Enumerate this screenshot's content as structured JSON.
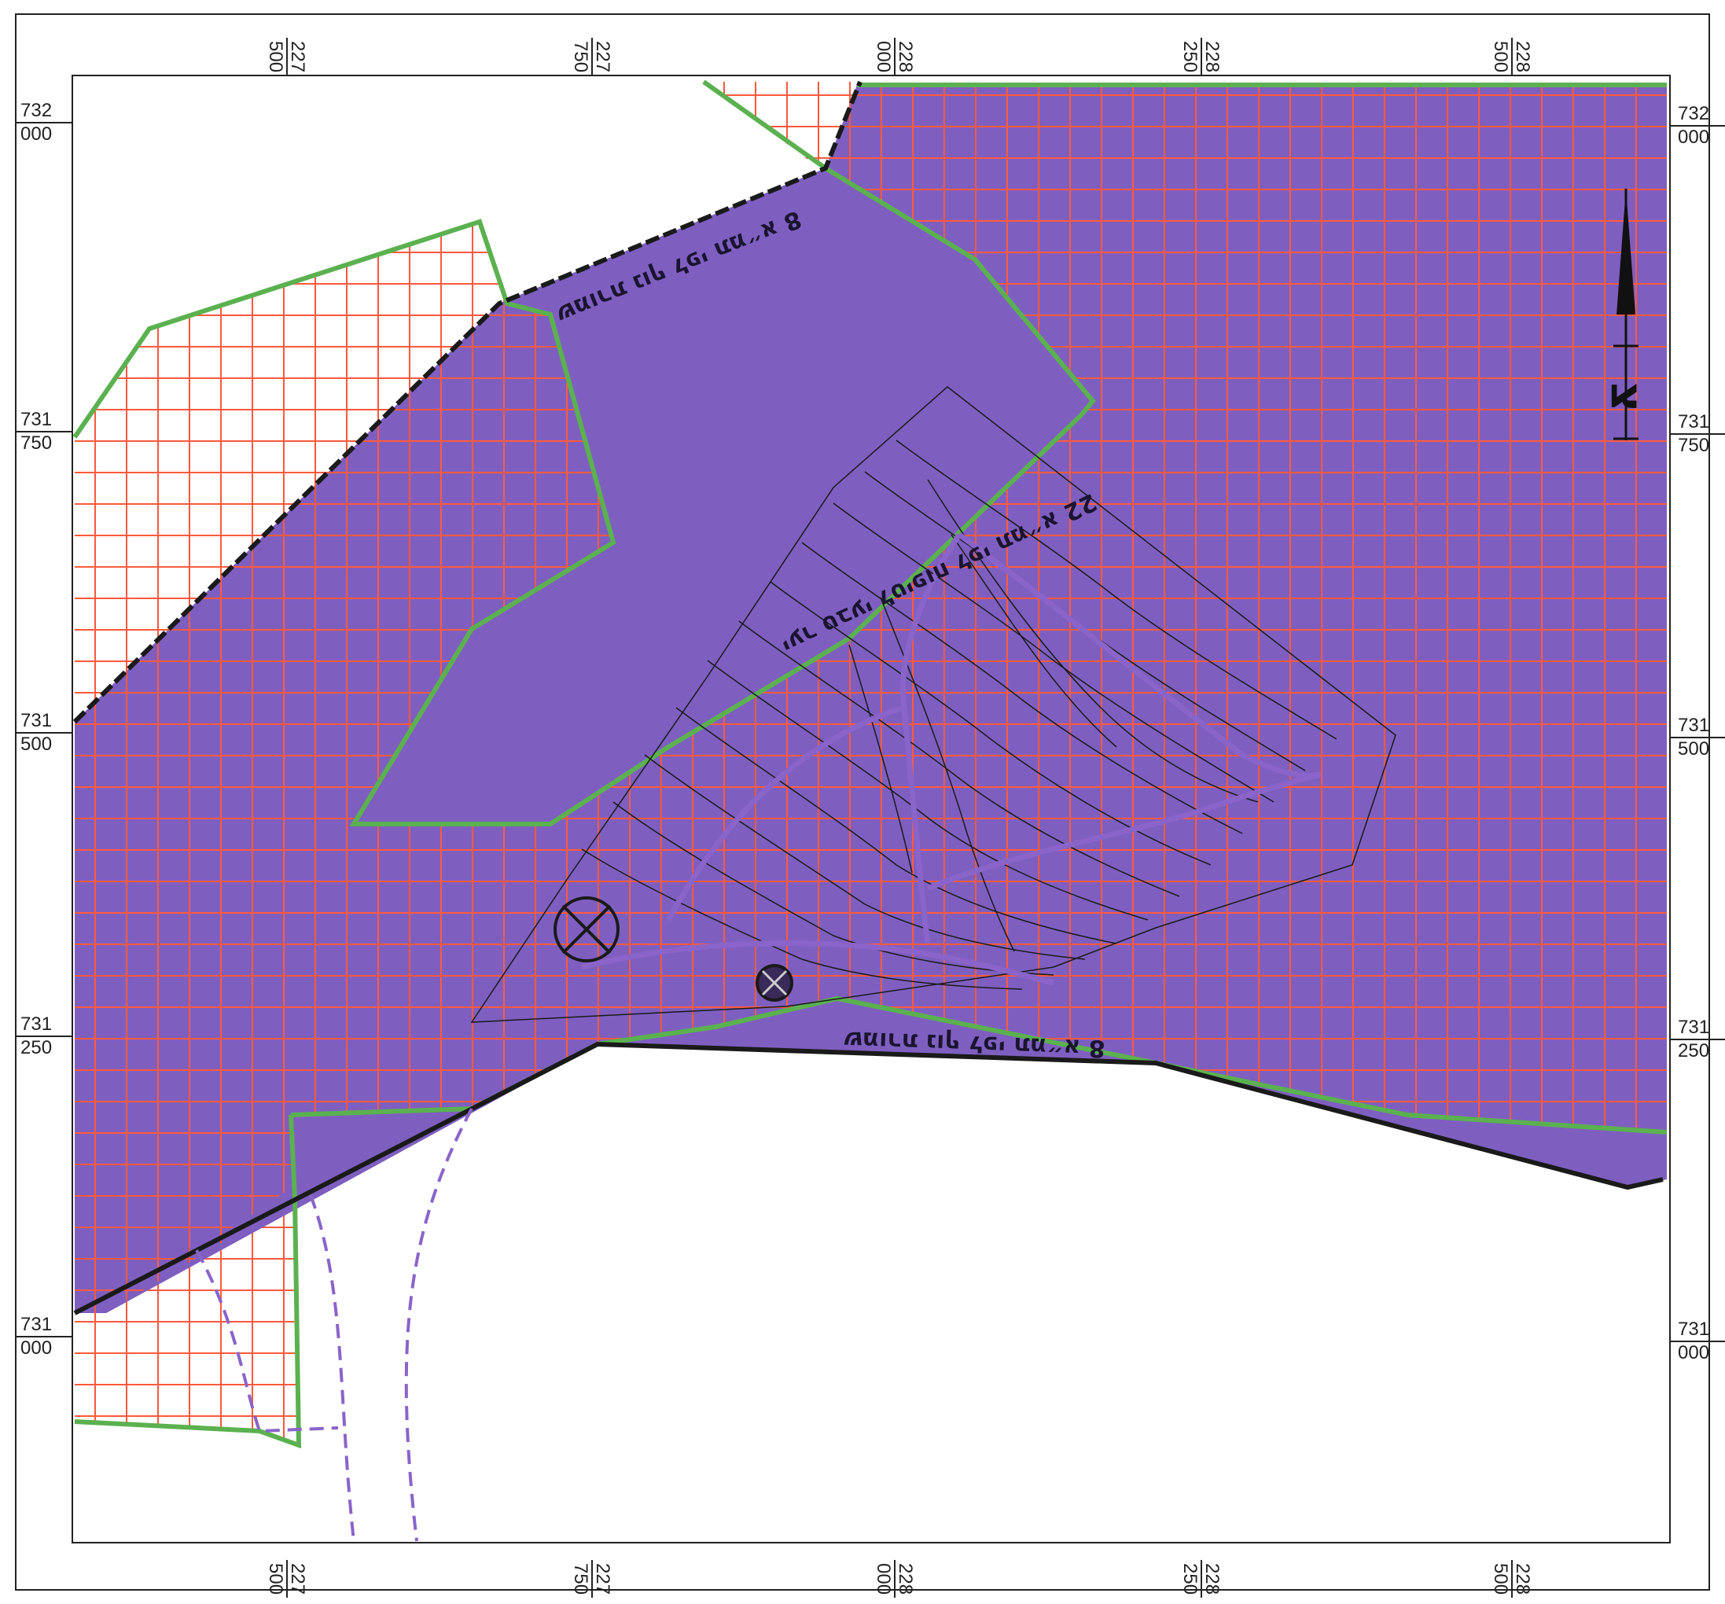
{
  "colors": {
    "preserve_fill": "#7e5fc0",
    "hatch_stroke": "#ff5a3c",
    "zone_border": "#5bb14f",
    "boundary_line": "#1a1a1a",
    "frame": "#222222",
    "road_dashed": "#8a64c9"
  },
  "icons": {
    "north_arrow": "north-arrow-icon",
    "site_markers": "circle-cross-icon"
  },
  "coordinates": {
    "top": [
      {
        "a": "227",
        "b": "500"
      },
      {
        "a": "227",
        "b": "750"
      },
      {
        "a": "228",
        "b": "000"
      },
      {
        "a": "228",
        "b": "250"
      },
      {
        "a": "228",
        "b": "500"
      }
    ],
    "bottom": [
      {
        "a": "227",
        "b": "500"
      },
      {
        "a": "227",
        "b": "750"
      },
      {
        "a": "228",
        "b": "000"
      },
      {
        "a": "228",
        "b": "250"
      },
      {
        "a": "228",
        "b": "500"
      }
    ],
    "left": [
      {
        "a": "732",
        "b": "000"
      },
      {
        "a": "731",
        "b": "750"
      },
      {
        "a": "731",
        "b": "500"
      },
      {
        "a": "731",
        "b": "250"
      },
      {
        "a": "731",
        "b": "000"
      }
    ],
    "right": [
      {
        "a": "732",
        "b": "000"
      },
      {
        "a": "731",
        "b": "750"
      },
      {
        "a": "731",
        "b": "500"
      },
      {
        "a": "731",
        "b": "250"
      },
      {
        "a": "731",
        "b": "000"
      }
    ]
  },
  "labels": {
    "landscape_upper": "שמורת נוף לפי תמ״א 8",
    "landscape_lower": "שמורת נוף לפי תמ״א 8",
    "forest": "יער טבעי לטיפוח לפי תמ״א 22",
    "north_letter": "צ"
  }
}
